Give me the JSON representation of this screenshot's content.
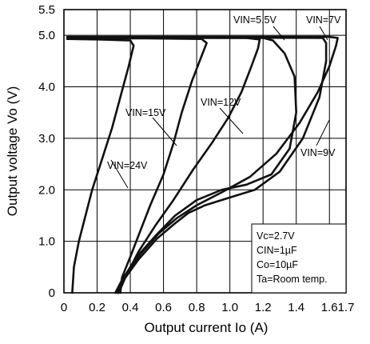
{
  "chart_data": {
    "type": "line",
    "xlabel": "Output current Io (A)",
    "ylabel": "Output voltage Vo (V)",
    "xlim": [
      0,
      1.7
    ],
    "ylim": [
      0,
      5.5
    ],
    "x_ticks": [
      "0",
      "0.2",
      "0.4",
      "0.6",
      "0.8",
      "1.0",
      "1.2",
      "1.4",
      "1.6",
      "1.7"
    ],
    "y_ticks": [
      "0",
      "1.0",
      "2.0",
      "3.0",
      "4.0",
      "5.0",
      "5.5"
    ],
    "grid": true,
    "conditions": [
      "Vc=2.7V",
      "CIN=1µF",
      "Co=10µF",
      "Ta=Room temp."
    ],
    "series": [
      {
        "name": "VIN=24V",
        "points": [
          [
            0.05,
            0
          ],
          [
            0.06,
            0.5
          ],
          [
            0.09,
            1.0
          ],
          [
            0.13,
            1.5
          ],
          [
            0.17,
            2.0
          ],
          [
            0.23,
            2.6
          ],
          [
            0.29,
            3.2
          ],
          [
            0.34,
            3.8
          ],
          [
            0.39,
            4.4
          ],
          [
            0.42,
            4.8
          ],
          [
            0.4,
            4.9
          ],
          [
            0.2,
            4.92
          ],
          [
            0.02,
            4.93
          ]
        ]
      },
      {
        "name": "VIN=15V",
        "points": [
          [
            0.34,
            0
          ],
          [
            0.35,
            0.3
          ],
          [
            0.4,
            0.7
          ],
          [
            0.46,
            1.2
          ],
          [
            0.52,
            1.7
          ],
          [
            0.6,
            2.3
          ],
          [
            0.66,
            2.9
          ],
          [
            0.71,
            3.5
          ],
          [
            0.77,
            4.1
          ],
          [
            0.83,
            4.6
          ],
          [
            0.86,
            4.85
          ],
          [
            0.83,
            4.93
          ],
          [
            0.5,
            4.94
          ],
          [
            0.02,
            4.94
          ]
        ]
      },
      {
        "name": "VIN=12V",
        "points": [
          [
            0.33,
            0
          ],
          [
            0.37,
            0.3
          ],
          [
            0.45,
            0.8
          ],
          [
            0.55,
            1.3
          ],
          [
            0.66,
            1.8
          ],
          [
            0.78,
            2.4
          ],
          [
            0.89,
            2.9
          ],
          [
            0.99,
            3.4
          ],
          [
            1.07,
            3.9
          ],
          [
            1.13,
            4.4
          ],
          [
            1.17,
            4.75
          ],
          [
            1.18,
            4.92
          ],
          [
            1.1,
            4.95
          ],
          [
            0.02,
            4.95
          ]
        ]
      },
      {
        "name": "VIN=5.5V",
        "points": [
          [
            0.31,
            0
          ],
          [
            0.35,
            0.25
          ],
          [
            0.44,
            0.7
          ],
          [
            0.55,
            1.1
          ],
          [
            0.67,
            1.5
          ],
          [
            0.8,
            1.8
          ],
          [
            0.95,
            2.0
          ],
          [
            1.1,
            2.1
          ],
          [
            1.25,
            2.3
          ],
          [
            1.36,
            2.8
          ],
          [
            1.4,
            3.5
          ],
          [
            1.39,
            4.2
          ],
          [
            1.33,
            4.65
          ],
          [
            1.26,
            4.9
          ],
          [
            1.2,
            4.95
          ],
          [
            0.02,
            4.96
          ]
        ]
      },
      {
        "name": "VIN=7V",
        "points": [
          [
            0.32,
            0
          ],
          [
            0.36,
            0.25
          ],
          [
            0.45,
            0.65
          ],
          [
            0.56,
            1.05
          ],
          [
            0.67,
            1.35
          ],
          [
            0.75,
            1.55
          ],
          [
            0.85,
            1.7
          ],
          [
            1.0,
            1.85
          ],
          [
            1.15,
            2.0
          ],
          [
            1.3,
            2.35
          ],
          [
            1.44,
            3.0
          ],
          [
            1.54,
            3.8
          ],
          [
            1.58,
            4.5
          ],
          [
            1.58,
            4.85
          ],
          [
            1.56,
            4.95
          ],
          [
            0.02,
            4.96
          ]
        ]
      },
      {
        "name": "VIN=9V",
        "points": [
          [
            0.33,
            0
          ],
          [
            0.37,
            0.3
          ],
          [
            0.46,
            0.75
          ],
          [
            0.57,
            1.15
          ],
          [
            0.68,
            1.45
          ],
          [
            0.8,
            1.7
          ],
          [
            0.95,
            1.95
          ],
          [
            1.12,
            2.25
          ],
          [
            1.28,
            2.7
          ],
          [
            1.42,
            3.3
          ],
          [
            1.53,
            3.9
          ],
          [
            1.6,
            4.4
          ],
          [
            1.64,
            4.8
          ],
          [
            1.65,
            4.95
          ],
          [
            1.6,
            4.97
          ],
          [
            0.02,
            4.97
          ]
        ]
      }
    ],
    "annotations": [
      {
        "series": "VIN=24V",
        "label": "VIN=24V"
      },
      {
        "series": "VIN=15V",
        "label": "VIN=15V"
      },
      {
        "series": "VIN=12V",
        "label": "VIN=12V"
      },
      {
        "series": "VIN=5.5V",
        "label": "VIN=5.5V"
      },
      {
        "series": "VIN=7V",
        "label": "VIN=7V"
      },
      {
        "series": "VIN=9V",
        "label": "VIN=9V"
      }
    ]
  }
}
